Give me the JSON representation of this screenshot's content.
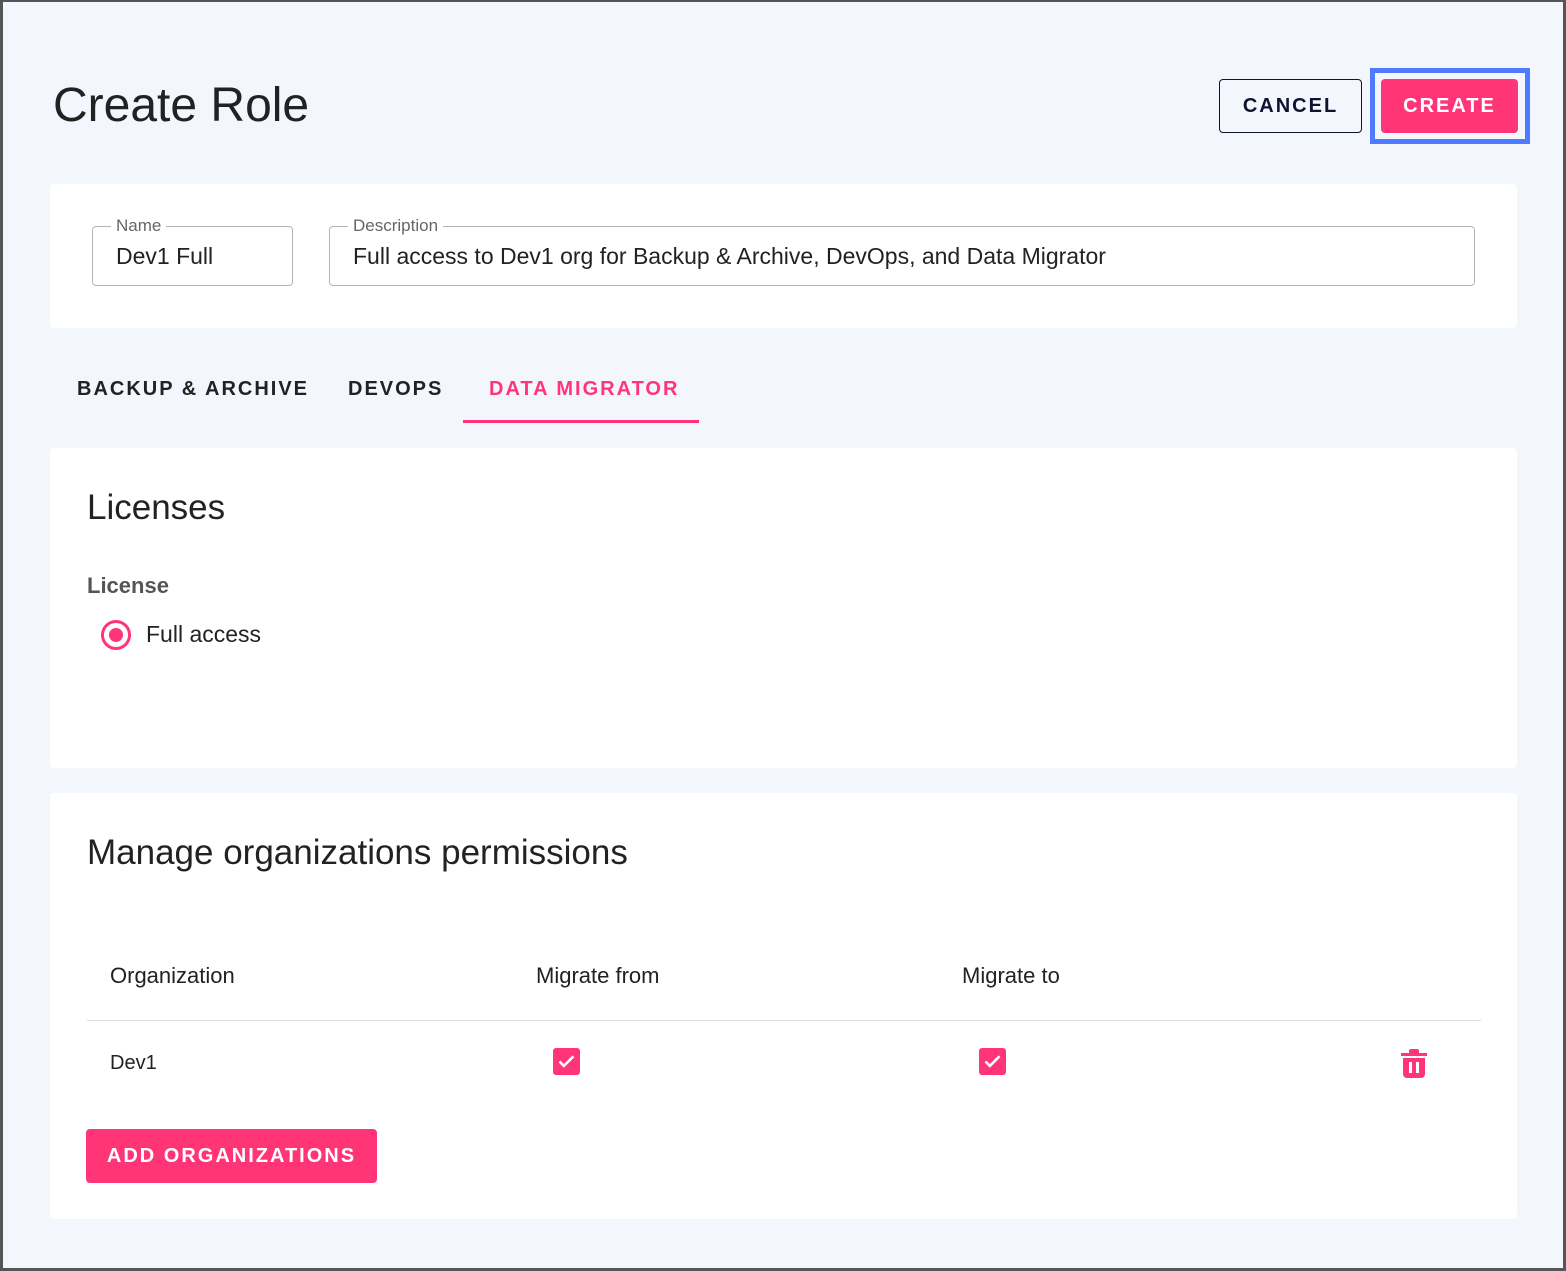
{
  "page_title": "Create Role",
  "header": {
    "cancel_label": "CANCEL",
    "create_label": "CREATE"
  },
  "form": {
    "name_label": "Name",
    "name_value": "Dev1 Full",
    "description_label": "Description",
    "description_value": "Full access to Dev1 org for Backup & Archive, DevOps, and Data Migrator"
  },
  "tabs": [
    {
      "label": "BACKUP & ARCHIVE"
    },
    {
      "label": "DEVOPS"
    },
    {
      "label": "DATA MIGRATOR",
      "active": true
    }
  ],
  "licenses": {
    "title": "Licenses",
    "group_label": "License",
    "option_label": "Full access",
    "selected": true
  },
  "permissions": {
    "title": "Manage organizations permissions",
    "columns": [
      "Organization",
      "Migrate from",
      "Migrate to"
    ],
    "rows": [
      {
        "organization": "Dev1",
        "migrate_from": true,
        "migrate_to": true
      }
    ],
    "add_label": "ADD ORGANIZATIONS"
  },
  "colors": {
    "accent": "#ff3577",
    "focus": "#4f7cff",
    "background": "#f3f6fd"
  }
}
